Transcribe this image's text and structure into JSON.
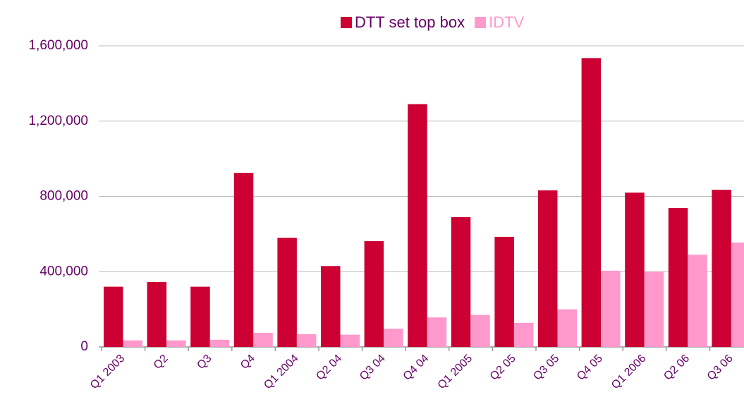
{
  "chart_data": {
    "type": "bar",
    "categories": [
      "Q1 2003",
      "Q2",
      "Q3",
      "Q4",
      "Q1 2004",
      "Q2 04",
      "Q3 04",
      "Q4 04",
      "Q1 2005",
      "Q2 05",
      "Q3 05",
      "Q4 05",
      "Q1 2006",
      "Q2 06",
      "Q3 06"
    ],
    "series": [
      {
        "name": "DTT set top box",
        "color": "#cc0033",
        "values": [
          320000,
          345000,
          320000,
          925000,
          580000,
          430000,
          562000,
          1290000,
          690000,
          585000,
          832000,
          1535000,
          820000,
          738000,
          835000
        ]
      },
      {
        "name": "IDTV",
        "color": "#ff99cc",
        "values": [
          35000,
          35000,
          38000,
          75000,
          68000,
          65000,
          97000,
          157000,
          170000,
          128000,
          200000,
          405000,
          400000,
          490000,
          555000
        ]
      }
    ],
    "ylim": [
      0,
      1600000
    ],
    "yticks": [
      0,
      {
        "value": 400000,
        "label": "400,000"
      },
      {
        "value": 800000,
        "label": "800,000"
      },
      {
        "value": 1200000,
        "label": "1,200,000"
      },
      {
        "value": 1600000,
        "label": "1,600,000"
      }
    ],
    "grid": true,
    "legend": "top"
  }
}
